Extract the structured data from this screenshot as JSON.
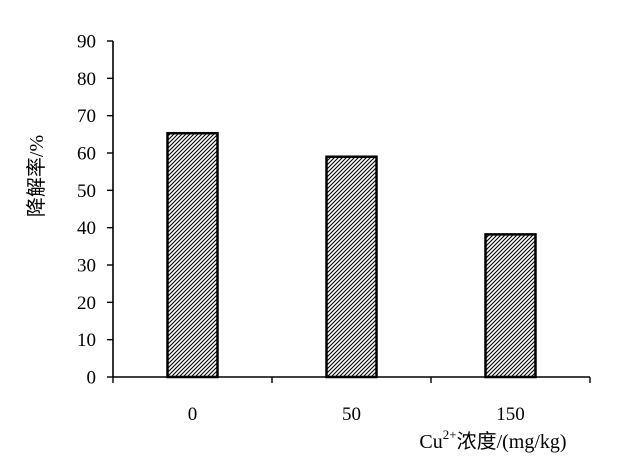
{
  "chart_data": {
    "type": "bar",
    "categories": [
      "0",
      "50",
      "150"
    ],
    "values": [
      65.3,
      59,
      38.2
    ],
    "title": "",
    "xlabel": {
      "prefix": "Cu",
      "superscript": "2+",
      "suffix": "浓度/(mg/kg)"
    },
    "ylabel": "降解率/%",
    "ylim": [
      0,
      90
    ],
    "yticks": [
      "0",
      "10",
      "20",
      "30",
      "40",
      "50",
      "60",
      "70",
      "80",
      "90"
    ],
    "grid": false,
    "legend": false,
    "bar_pattern": "diagonal-hatch",
    "colors": {
      "bar_fill": "#ffffff",
      "hatch": "#000000",
      "axis": "#000000"
    }
  }
}
